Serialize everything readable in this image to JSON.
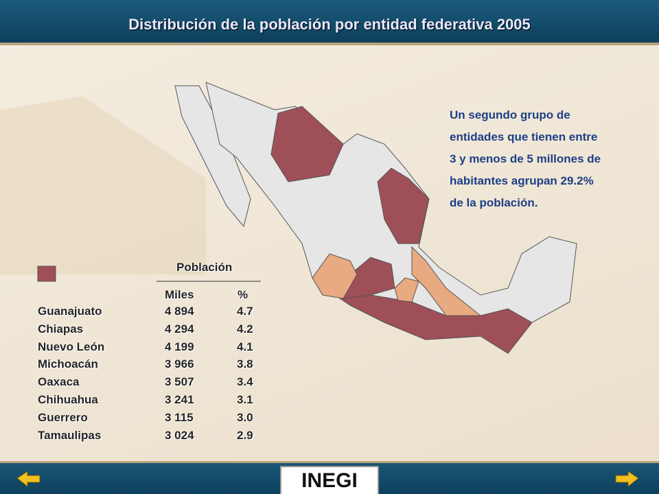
{
  "header": {
    "title": "Distribución de la población por entidad federativa 2005"
  },
  "note": {
    "lines": [
      "Un segundo grupo de",
      "entidades que tienen entre",
      "3 y menos de 5 millones de",
      "habitantes agrupan 29.2%",
      "de la población."
    ]
  },
  "table": {
    "group_header": "Población",
    "columns": [
      "Miles",
      "%"
    ],
    "rows": [
      [
        "Guanajuato",
        "4 894",
        "4.7"
      ],
      [
        "Chiapas",
        "4 294",
        "4.2"
      ],
      [
        "Nuevo León",
        "4 199",
        "4.1"
      ],
      [
        "Michoacán",
        "3 966",
        "3.8"
      ],
      [
        "Oaxaca",
        "3 507",
        "3.4"
      ],
      [
        "Chihuahua",
        "3 241",
        "3.1"
      ],
      [
        "Guerrero",
        "3 115",
        "3.0"
      ],
      [
        "Tamaulipas",
        "3 024",
        "2.9"
      ]
    ]
  },
  "footer": {
    "logo": "INEGI"
  }
}
